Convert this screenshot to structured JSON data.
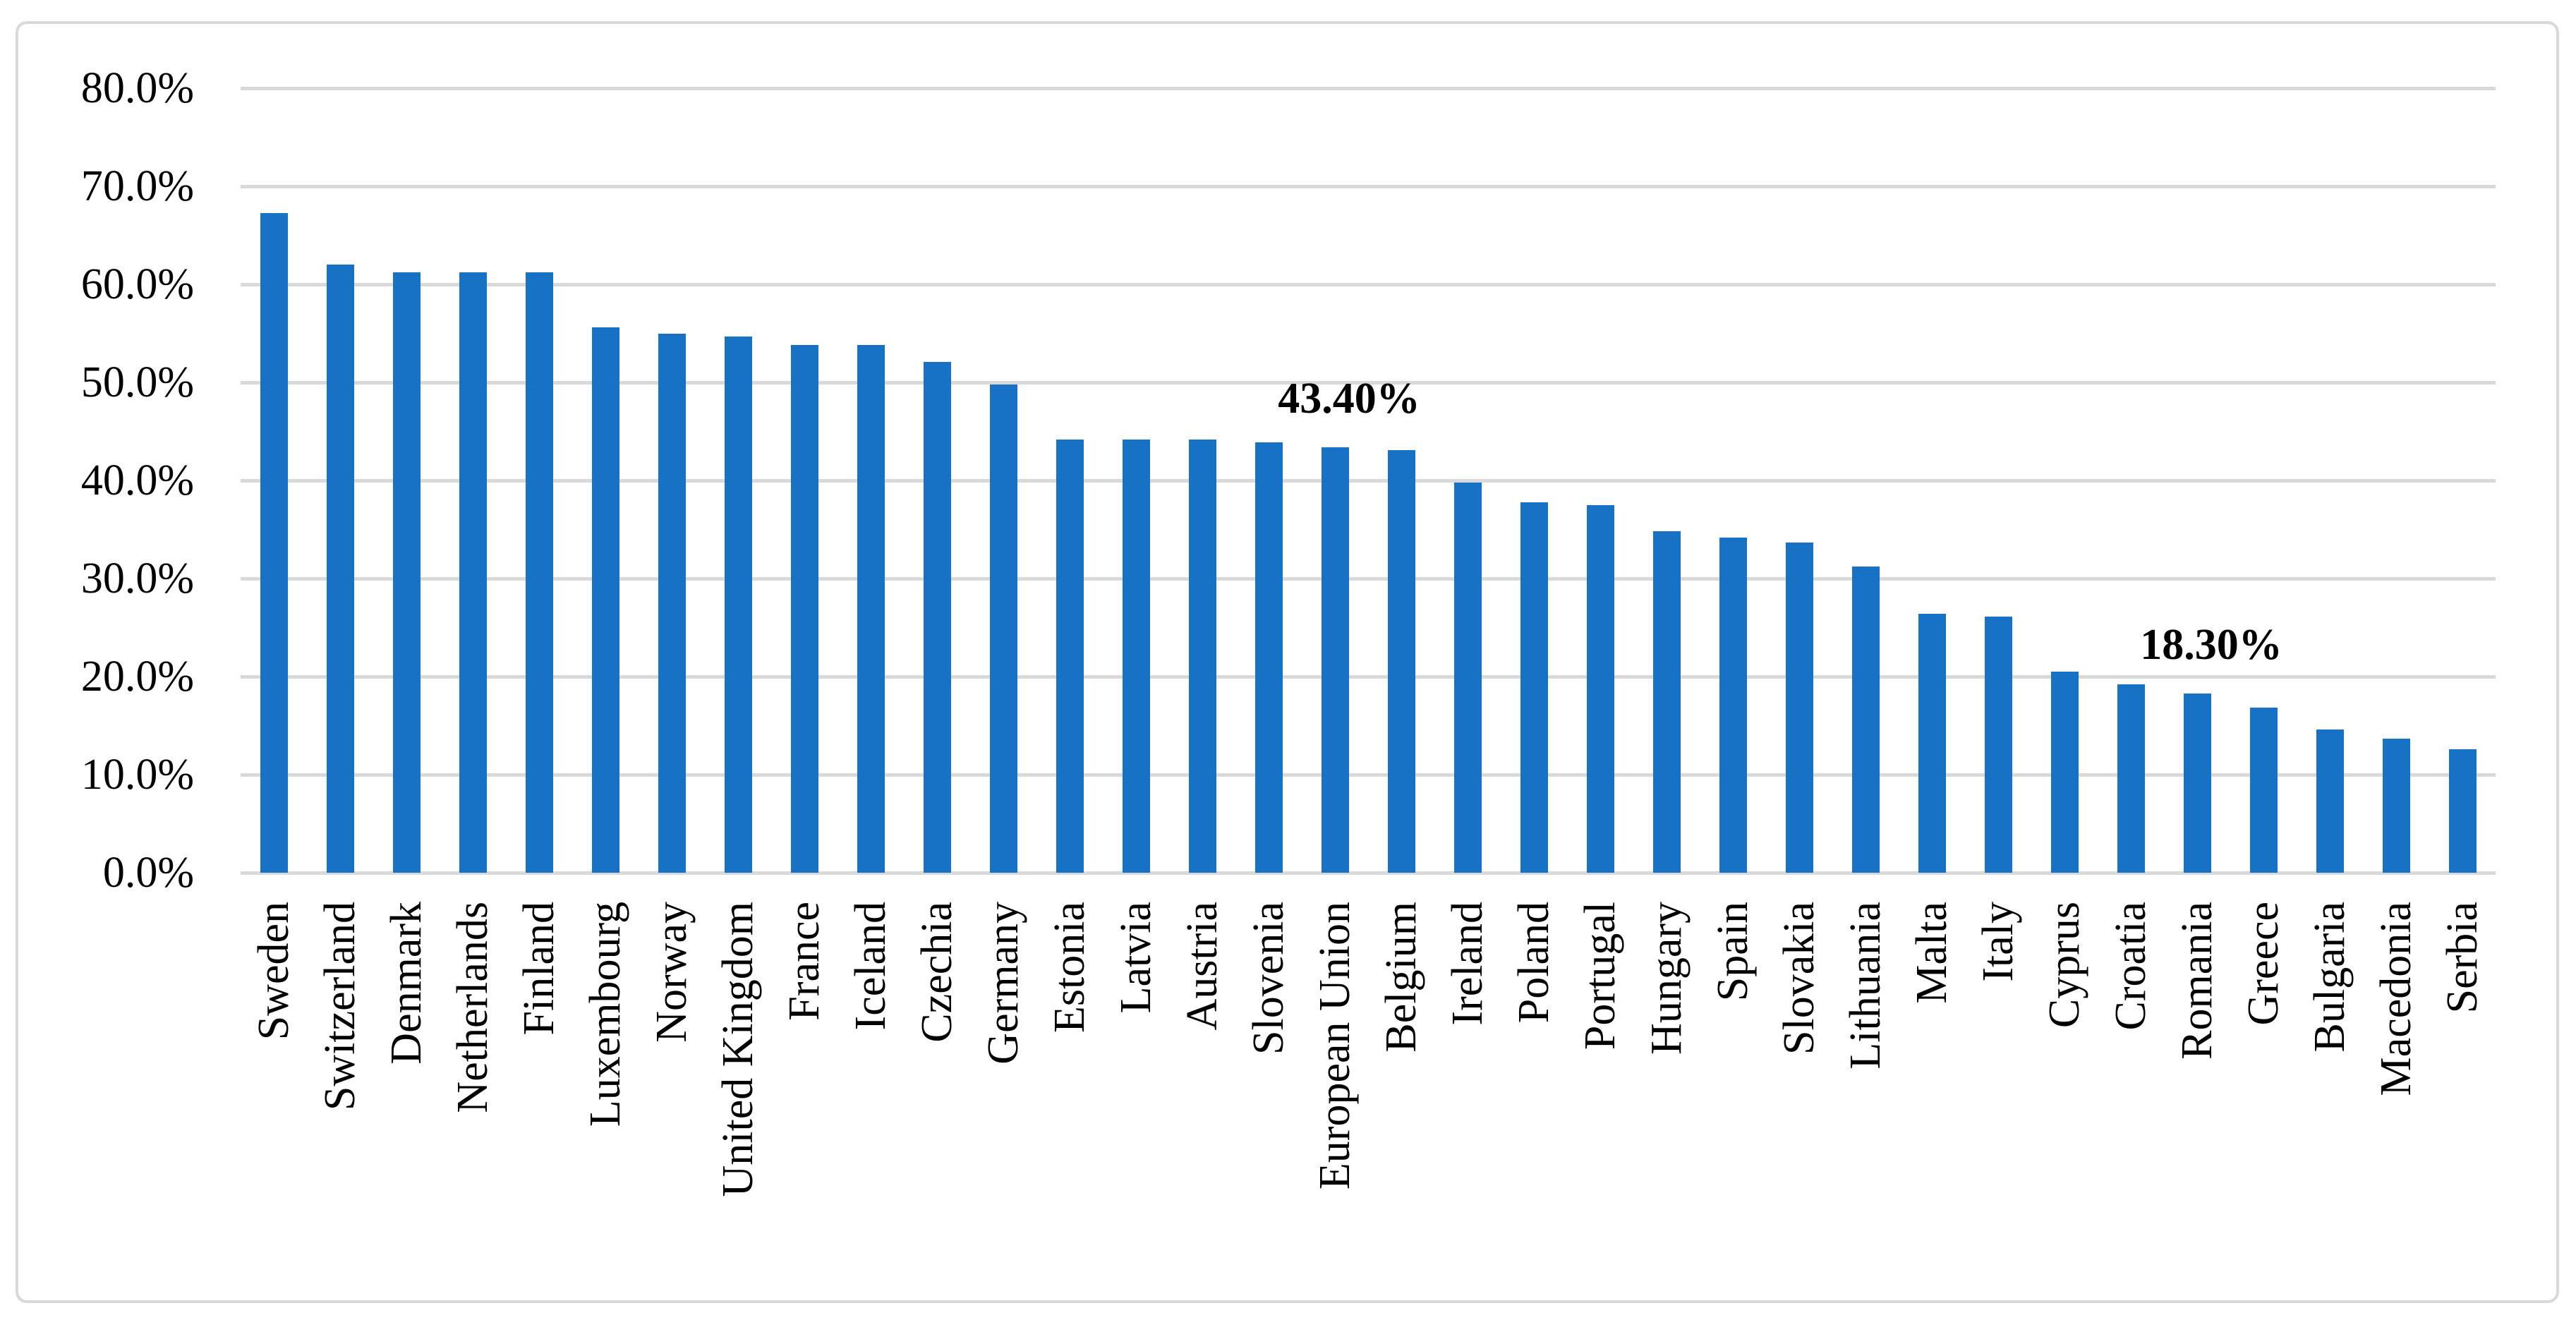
{
  "chart_data": {
    "type": "bar",
    "title": "",
    "xlabel": "",
    "ylabel": "",
    "ylim": [
      0,
      80
    ],
    "grid": true,
    "legend": "none",
    "bar_color": "#1772C6",
    "gridline_color": "#D9D9D9",
    "border_color": "#D9D9D9",
    "text_color": "#000000",
    "y_tick_labels": [
      "0.0%",
      "10.0%",
      "20.0%",
      "30.0%",
      "40.0%",
      "50.0%",
      "60.0%",
      "70.0%",
      "80.0%"
    ],
    "categories": [
      "Sweden",
      "Switzerland",
      "Denmark",
      "Netherlands",
      "Finland",
      "Luxembourg",
      "Norway",
      "United Kingdom",
      "France",
      "Iceland",
      "Czechia",
      "Germany",
      "Estonia",
      "Latvia",
      "Austria",
      "Slovenia",
      "European Union",
      "Belgium",
      "Ireland",
      "Poland",
      "Portugal",
      "Hungary",
      "Spain",
      "Slovakia",
      "Lithuania",
      "Malta",
      "Italy",
      "Cyprus",
      "Croatia",
      "Romania",
      "Greece",
      "Bulgaria",
      "Macedonia",
      "Serbia"
    ],
    "values": [
      67.3,
      62.0,
      61.2,
      61.2,
      61.2,
      55.6,
      55.0,
      54.7,
      53.8,
      53.8,
      52.1,
      49.8,
      44.2,
      44.2,
      44.2,
      43.9,
      43.4,
      43.1,
      39.8,
      37.8,
      37.5,
      34.8,
      34.2,
      33.7,
      31.2,
      26.4,
      26.1,
      20.5,
      19.2,
      18.3,
      16.8,
      14.6,
      13.7,
      12.6
    ],
    "data_labels": [
      {
        "category_index": 16,
        "category": "European Union",
        "text": "43.40%"
      },
      {
        "category_index": 29,
        "category": "Romania",
        "text": "18.30%"
      }
    ]
  }
}
